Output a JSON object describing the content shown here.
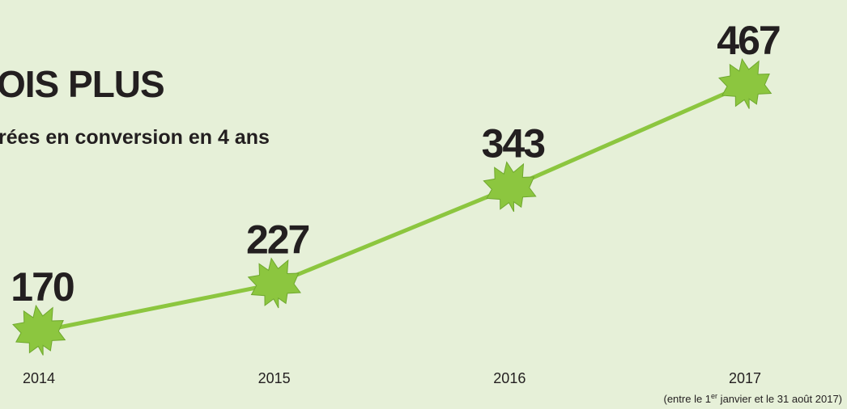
{
  "chart_data": {
    "type": "line",
    "title": "OIS PLUS",
    "subtitle": "rées en conversion en 4 ans",
    "categories": [
      "2014",
      "2015",
      "2016",
      "2017"
    ],
    "values": [
      170,
      227,
      343,
      467
    ],
    "color": "#8cc63f",
    "note": [
      "(entre le 1",
      "er",
      " janvier et le 31 août 2017)"
    ]
  }
}
